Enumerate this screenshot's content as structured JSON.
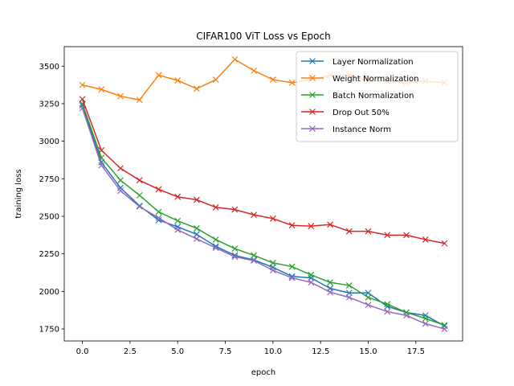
{
  "chart_data": {
    "type": "line",
    "title": "CIFAR100 ViT Loss vs Epoch",
    "xlabel": "epoch",
    "ylabel": "training loss",
    "xlim": [
      -0.95,
      19.95
    ],
    "ylim": [
      1670,
      3630
    ],
    "xticks": [
      0.0,
      2.5,
      5.0,
      7.5,
      10.0,
      12.5,
      15.0,
      17.5
    ],
    "xtick_labels": [
      "0.0",
      "2.5",
      "5.0",
      "7.5",
      "10.0",
      "12.5",
      "15.0",
      "17.5"
    ],
    "yticks": [
      1750,
      2000,
      2250,
      2500,
      2750,
      3000,
      3250,
      3500
    ],
    "ytick_labels": [
      "1750",
      "2000",
      "2250",
      "2500",
      "2750",
      "3000",
      "3250",
      "3500"
    ],
    "grid": false,
    "legend_position": "top-right",
    "marker": "x",
    "x": [
      0,
      1,
      2,
      3,
      4,
      5,
      6,
      7,
      8,
      9,
      10,
      11,
      12,
      13,
      14,
      15,
      16,
      17,
      18,
      19
    ],
    "series": [
      {
        "name": "Layer Normalization",
        "color": "#1f77b4",
        "values": [
          3240,
          2860,
          2690,
          2570,
          2475,
          2430,
          2380,
          2300,
          2240,
          2210,
          2160,
          2100,
          2090,
          2020,
          1990,
          1990,
          1900,
          1860,
          1840,
          1770
        ]
      },
      {
        "name": "Weight Normalization",
        "color": "#ff7f0e",
        "values": [
          3375,
          3345,
          3300,
          3275,
          3440,
          3405,
          3350,
          3410,
          3545,
          3470,
          3410,
          3390,
          3410,
          3440,
          3440,
          3400,
          3400,
          3390,
          3400,
          3390
        ]
      },
      {
        "name": "Batch Normalization",
        "color": "#2ca02c",
        "values": [
          3250,
          2890,
          2740,
          2640,
          2530,
          2470,
          2420,
          2345,
          2285,
          2240,
          2190,
          2165,
          2110,
          2060,
          2040,
          1960,
          1915,
          1860,
          1820,
          1775
        ]
      },
      {
        "name": "Drop Out 50%",
        "color": "#d62728",
        "values": [
          3280,
          2940,
          2820,
          2740,
          2680,
          2630,
          2610,
          2560,
          2545,
          2510,
          2485,
          2440,
          2435,
          2445,
          2400,
          2400,
          2375,
          2375,
          2345,
          2320
        ]
      },
      {
        "name": "Instance Norm",
        "color": "#9467bd",
        "values": [
          3220,
          2840,
          2670,
          2565,
          2490,
          2410,
          2350,
          2290,
          2230,
          2205,
          2140,
          2090,
          2060,
          1995,
          1960,
          1910,
          1865,
          1840,
          1785,
          1750
        ]
      }
    ]
  }
}
